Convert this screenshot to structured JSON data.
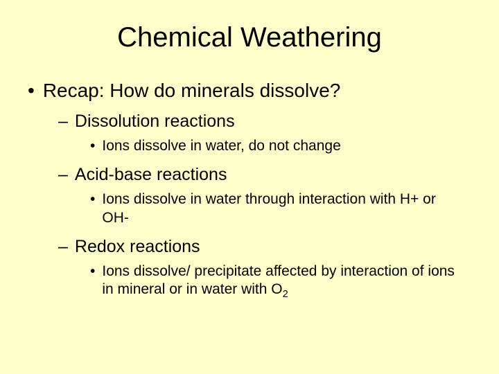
{
  "type": "presentation-slide",
  "background_color": "#ffffcc",
  "text_color": "#000000",
  "font_family": "Arial",
  "title": {
    "text": "Chemical Weathering",
    "fontsize": 40,
    "align": "center"
  },
  "bullets": {
    "level1_fontsize": 28,
    "level2_fontsize": 25,
    "level3_fontsize": 21,
    "level1_marker": "•",
    "level2_marker": "–",
    "level3_marker": "•",
    "l1_text": "Recap: How do minerals dissolve?",
    "l2a_text": "Dissolution reactions",
    "l3a_text": "Ions dissolve in water, do not change",
    "l2b_text": "Acid-base reactions",
    "l3b_text": "Ions dissolve in water through interaction with H+ or OH-",
    "l2c_text": "Redox reactions",
    "l3c_prefix": "Ions dissolve/ precipitate affected by interaction of ions in mineral or in water with O",
    "l3c_sub": "2"
  }
}
